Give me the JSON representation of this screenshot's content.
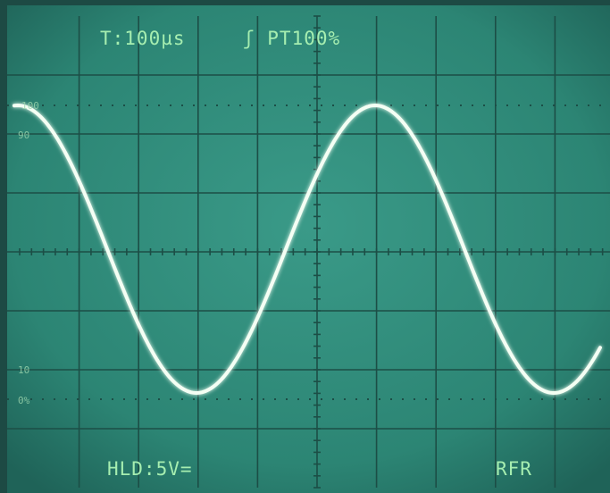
{
  "readouts": {
    "timebase": "T:100µs",
    "trigger": "ʃ PT100%",
    "hold": "HLD:5V=",
    "mode": "RFR"
  },
  "scale_labels": {
    "top": "100",
    "upper": "90",
    "lower": "10",
    "bottom": "0%"
  }
}
